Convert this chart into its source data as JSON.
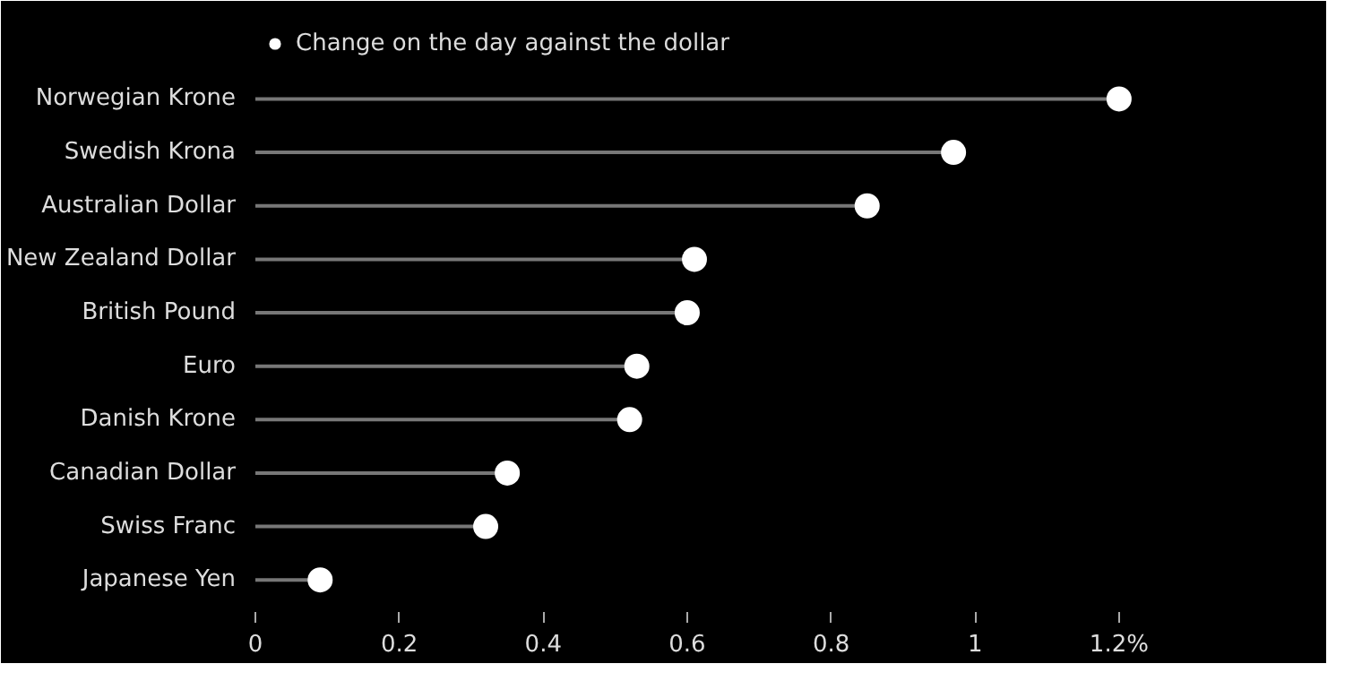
{
  "chart_data": {
    "type": "lollipop",
    "orientation": "horizontal",
    "categories": [
      "Norwegian Krone",
      "Swedish Krona",
      "Australian Dollar",
      "New Zealand Dollar",
      "British Pound",
      "Euro",
      "Danish Krone",
      "Canadian Dollar",
      "Swiss Franc",
      "Japanese Yen"
    ],
    "series": [
      {
        "name": "Change on the day against the dollar",
        "color": "#ffffff",
        "values": [
          1.2,
          0.97,
          0.85,
          0.61,
          0.6,
          0.53,
          0.52,
          0.35,
          0.32,
          0.09
        ]
      }
    ],
    "xlim": [
      0,
      1.24
    ],
    "xticks": [
      0,
      0.2,
      0.4,
      0.6,
      0.8,
      1,
      {
        "value": 1.2,
        "label": "1.2%"
      }
    ],
    "legend": "top left",
    "grid": false,
    "marker": "circle"
  }
}
